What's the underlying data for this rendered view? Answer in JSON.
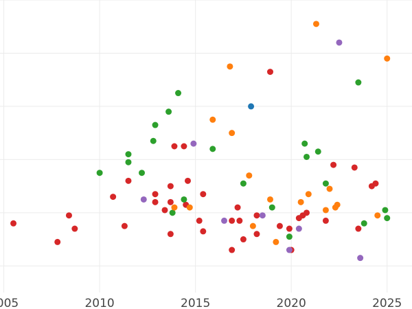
{
  "chart_data": {
    "type": "scatter",
    "title": "",
    "xlabel": "",
    "ylabel": "",
    "xlim": [
      2004.8,
      2026.3
    ],
    "ylim": [
      0.0,
      11.0
    ],
    "x_ticks": [
      2005,
      2010,
      2015,
      2020,
      2025
    ],
    "y_gridlines": [
      1,
      3,
      5,
      7,
      9,
      11
    ],
    "grid": true,
    "legend": "none",
    "series": [
      {
        "color": "#d62728",
        "points": [
          [
            2005.5,
            2.6
          ],
          [
            2007.8,
            1.9
          ],
          [
            2008.4,
            2.9
          ],
          [
            2008.7,
            2.4
          ],
          [
            2010.7,
            3.6
          ],
          [
            2011.3,
            2.5
          ],
          [
            2011.5,
            4.2
          ],
          [
            2012.9,
            3.7
          ],
          [
            2012.9,
            3.4
          ],
          [
            2013.4,
            3.1
          ],
          [
            2013.7,
            2.2
          ],
          [
            2013.7,
            3.4
          ],
          [
            2013.7,
            4.0
          ],
          [
            2013.9,
            5.5
          ],
          [
            2014.4,
            5.5
          ],
          [
            2014.5,
            3.3
          ],
          [
            2014.6,
            4.2
          ],
          [
            2015.2,
            2.7
          ],
          [
            2015.4,
            3.7
          ],
          [
            2015.4,
            2.3
          ],
          [
            2016.9,
            1.6
          ],
          [
            2016.9,
            2.7
          ],
          [
            2017.2,
            3.2
          ],
          [
            2017.3,
            2.7
          ],
          [
            2017.5,
            2.0
          ],
          [
            2018.2,
            2.2
          ],
          [
            2018.2,
            2.9
          ],
          [
            2018.9,
            8.3
          ],
          [
            2019.4,
            2.5
          ],
          [
            2019.9,
            2.4
          ],
          [
            2020.0,
            1.6
          ],
          [
            2020.4,
            2.8
          ],
          [
            2020.6,
            2.9
          ],
          [
            2020.8,
            3.0
          ],
          [
            2021.8,
            2.7
          ],
          [
            2022.2,
            4.8
          ],
          [
            2023.3,
            4.7
          ],
          [
            2023.5,
            2.4
          ],
          [
            2024.2,
            4.0
          ],
          [
            2024.4,
            4.1
          ]
        ]
      },
      {
        "color": "#2ca02c",
        "points": [
          [
            2010.0,
            4.5
          ],
          [
            2011.5,
            5.2
          ],
          [
            2011.5,
            4.9
          ],
          [
            2012.2,
            4.5
          ],
          [
            2012.8,
            5.7
          ],
          [
            2012.9,
            6.3
          ],
          [
            2013.6,
            6.8
          ],
          [
            2014.1,
            7.5
          ],
          [
            2013.8,
            3.0
          ],
          [
            2014.4,
            3.5
          ],
          [
            2015.9,
            5.4
          ],
          [
            2017.5,
            4.1
          ],
          [
            2019.0,
            3.2
          ],
          [
            2019.9,
            2.1
          ],
          [
            2020.7,
            5.6
          ],
          [
            2020.8,
            5.1
          ],
          [
            2021.4,
            5.3
          ],
          [
            2021.8,
            4.1
          ],
          [
            2023.5,
            7.9
          ],
          [
            2023.8,
            2.6
          ],
          [
            2024.9,
            3.1
          ],
          [
            2025.0,
            2.8
          ]
        ]
      },
      {
        "color": "#ff7f0e",
        "points": [
          [
            2013.9,
            3.2
          ],
          [
            2014.7,
            3.2
          ],
          [
            2015.9,
            6.5
          ],
          [
            2016.8,
            8.5
          ],
          [
            2016.9,
            6.0
          ],
          [
            2017.8,
            4.4
          ],
          [
            2018.0,
            2.5
          ],
          [
            2018.9,
            3.5
          ],
          [
            2019.2,
            1.9
          ],
          [
            2020.5,
            3.4
          ],
          [
            2020.9,
            3.7
          ],
          [
            2021.3,
            10.1
          ],
          [
            2021.8,
            3.1
          ],
          [
            2022.0,
            3.9
          ],
          [
            2022.3,
            3.2
          ],
          [
            2022.4,
            3.3
          ],
          [
            2024.5,
            2.9
          ],
          [
            2025.0,
            8.8
          ]
        ]
      },
      {
        "color": "#9467bd",
        "points": [
          [
            2012.3,
            3.5
          ],
          [
            2014.9,
            5.6
          ],
          [
            2016.5,
            2.7
          ],
          [
            2018.5,
            2.9
          ],
          [
            2019.9,
            1.6
          ],
          [
            2020.4,
            2.4
          ],
          [
            2022.5,
            9.4
          ],
          [
            2023.6,
            1.3
          ]
        ]
      },
      {
        "color": "#1f77b4",
        "points": [
          [
            2017.9,
            7.0
          ]
        ]
      }
    ]
  }
}
